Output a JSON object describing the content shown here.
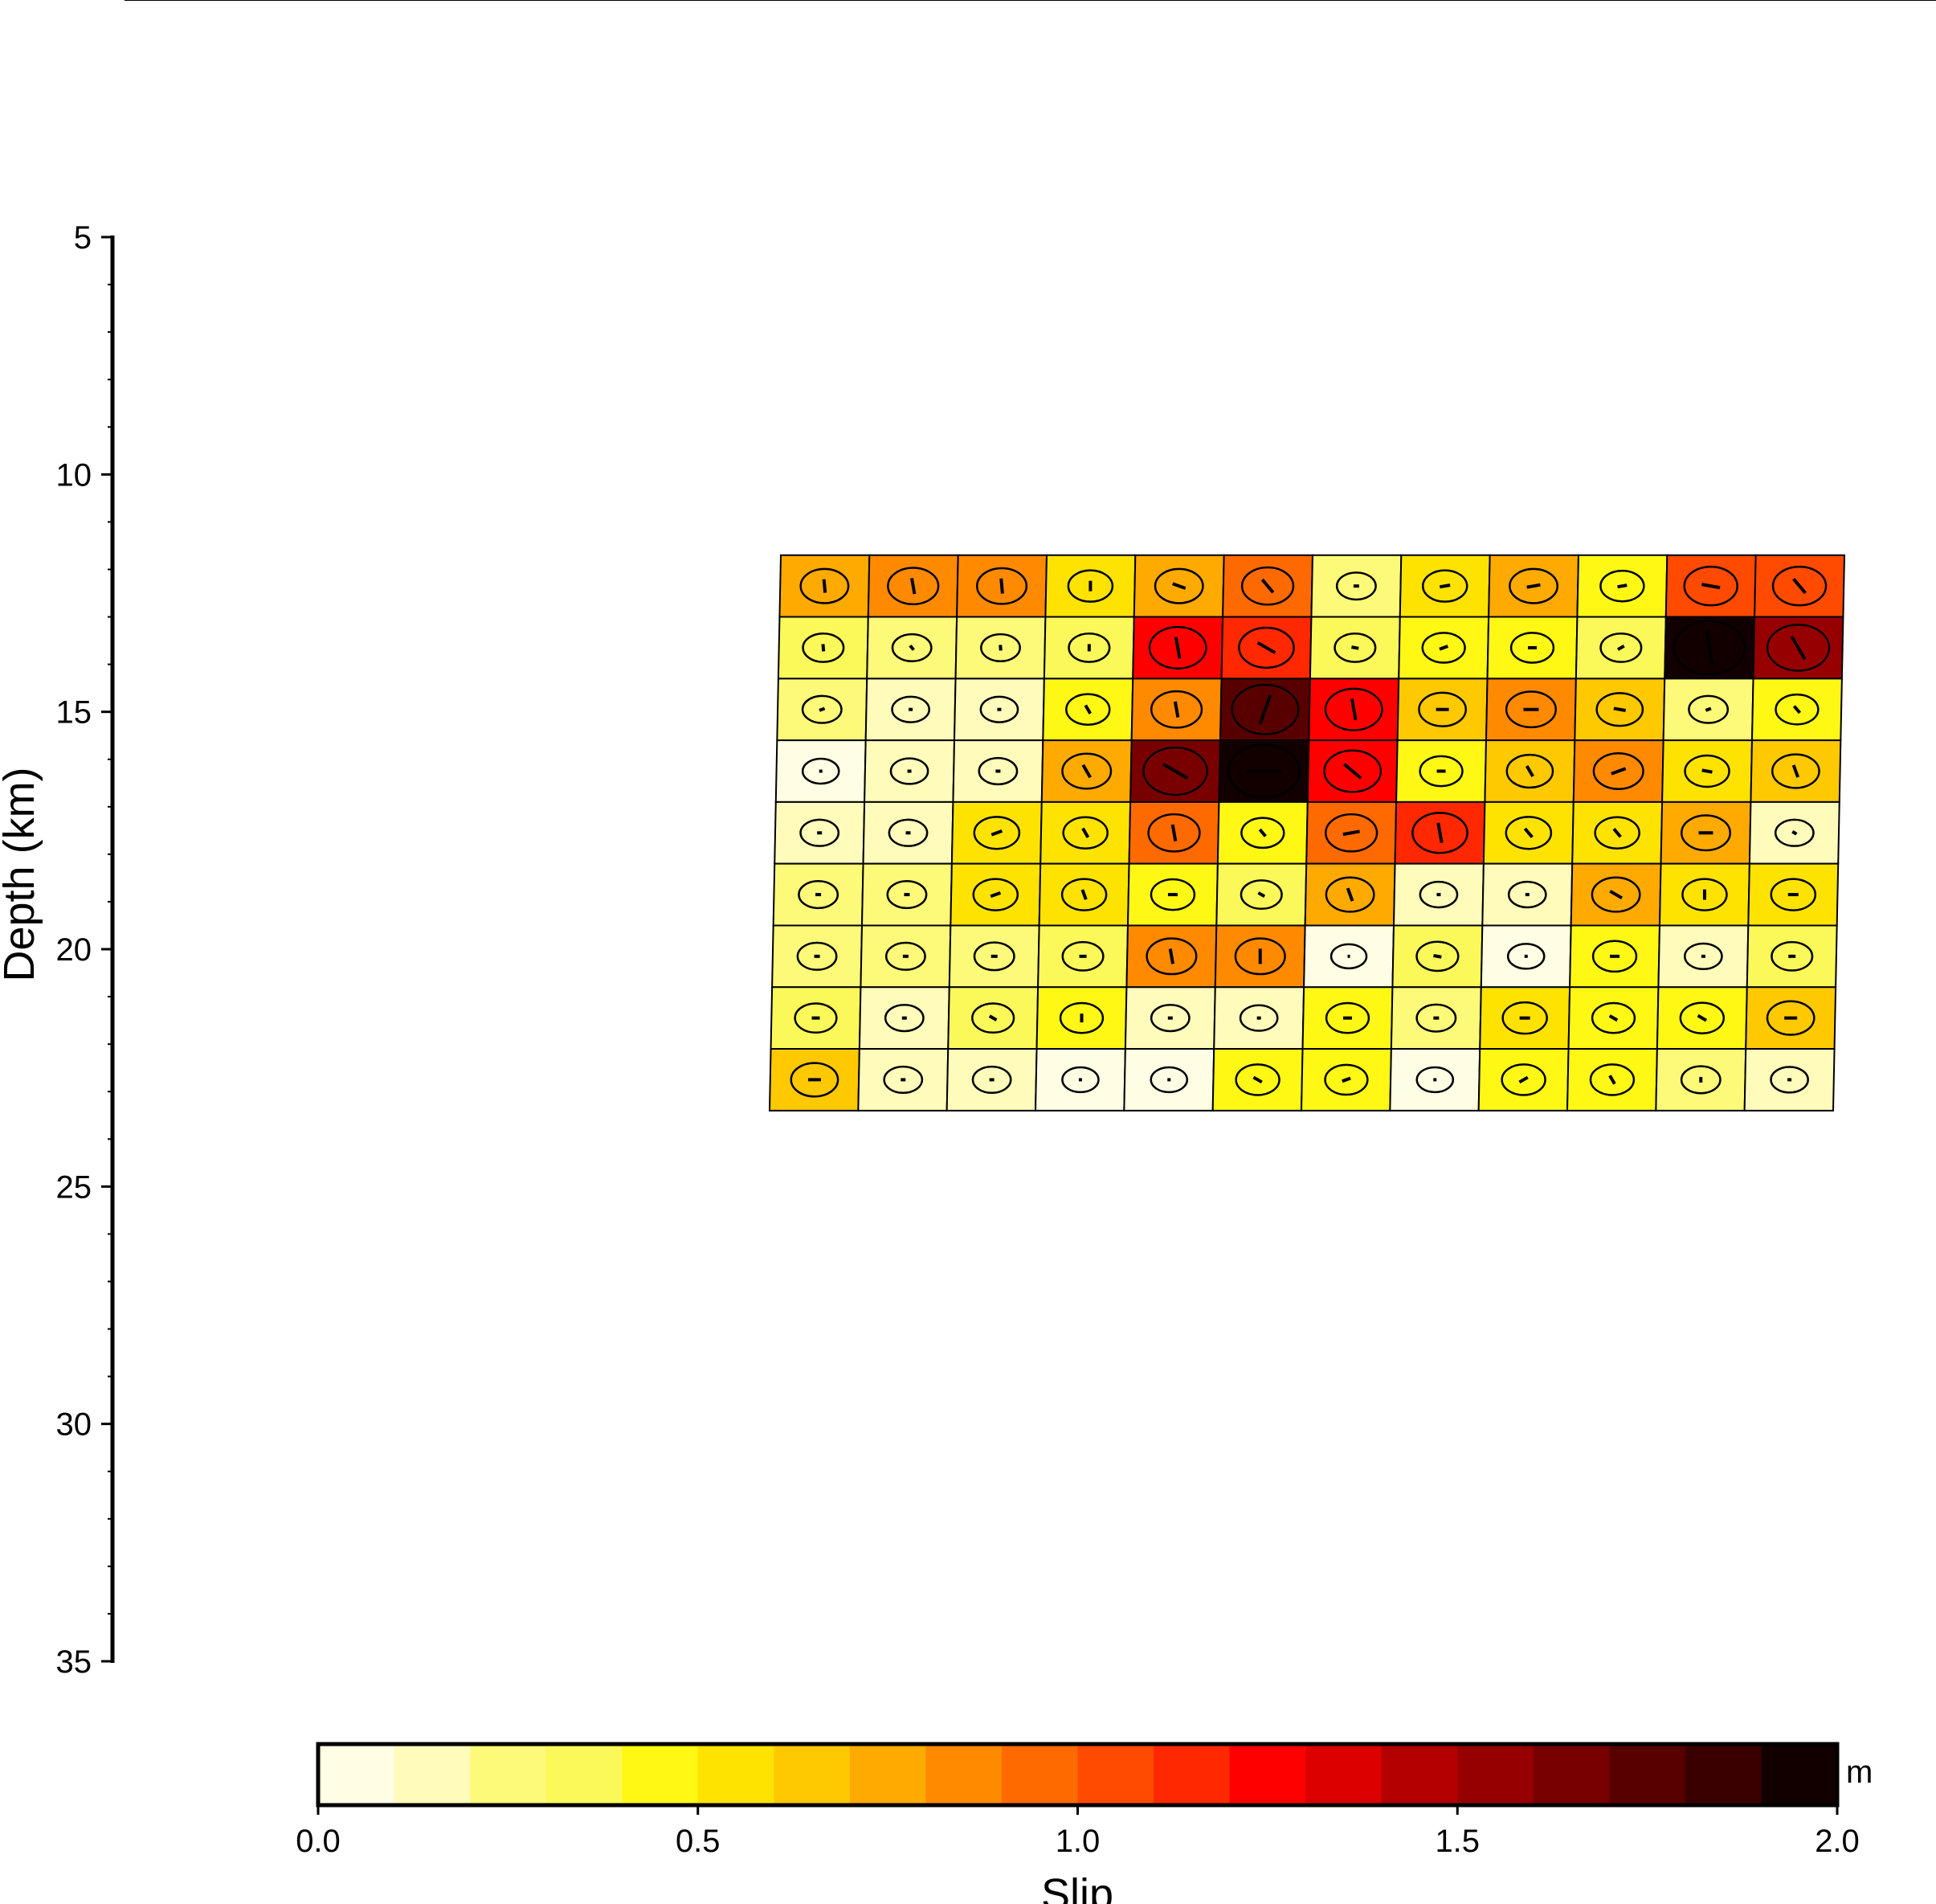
{
  "chart_data": {
    "type": "heatmap",
    "ylabel": "Depth (km)",
    "ylim": [
      5,
      35
    ],
    "y_ticks": [
      "5",
      "10",
      "15",
      "20",
      "25",
      "30",
      "35"
    ],
    "y_tick_values": [
      5,
      10,
      15,
      20,
      25,
      30,
      35
    ],
    "y_minor_step": 1,
    "grid": false,
    "fault": {
      "top_depth_km": 11.7,
      "bottom_depth_km": 23.4,
      "rows": 9,
      "cols": 12,
      "slip_m": [
        [
          0.7,
          0.85,
          0.8,
          0.5,
          0.7,
          0.9,
          0.2,
          0.5,
          0.7,
          0.45,
          1.0,
          1.0
        ],
        [
          0.3,
          0.2,
          0.2,
          0.3,
          1.2,
          1.1,
          0.3,
          0.4,
          0.4,
          0.3,
          2.0,
          1.5
        ],
        [
          0.2,
          0.1,
          0.1,
          0.45,
          0.85,
          1.75,
          1.2,
          0.65,
          0.8,
          0.6,
          0.2,
          0.4
        ],
        [
          0.05,
          0.1,
          0.15,
          0.75,
          1.6,
          2.0,
          1.2,
          0.4,
          0.6,
          0.8,
          0.5,
          0.65
        ],
        [
          0.15,
          0.15,
          0.55,
          0.5,
          0.9,
          0.4,
          0.9,
          1.1,
          0.55,
          0.5,
          0.75,
          0.15
        ],
        [
          0.2,
          0.2,
          0.5,
          0.5,
          0.45,
          0.3,
          0.7,
          0.1,
          0.1,
          0.7,
          0.5,
          0.5
        ],
        [
          0.2,
          0.2,
          0.25,
          0.3,
          0.8,
          0.8,
          0.0,
          0.35,
          0.05,
          0.45,
          0.1,
          0.3
        ],
        [
          0.35,
          0.15,
          0.35,
          0.4,
          0.15,
          0.1,
          0.4,
          0.2,
          0.5,
          0.4,
          0.45,
          0.65
        ],
        [
          0.65,
          0.15,
          0.15,
          0.05,
          0.05,
          0.45,
          0.4,
          0.05,
          0.45,
          0.45,
          0.2,
          0.1
        ]
      ],
      "rake_vectors_deg": [
        [
          -95,
          -100,
          -95,
          -90,
          -160,
          -130,
          0,
          -10,
          -10,
          -10,
          -170,
          -130
        ],
        [
          -95,
          -130,
          -95,
          -90,
          -100,
          -150,
          -170,
          160,
          0,
          150,
          -100,
          -120
        ],
        [
          160,
          0,
          0,
          -120,
          -100,
          -70,
          -100,
          0,
          0,
          10,
          160,
          -130
        ],
        [
          0,
          0,
          0,
          -120,
          30,
          0,
          -140,
          0,
          -120,
          -20,
          10,
          -110
        ],
        [
          0,
          0,
          160,
          -120,
          -100,
          -130,
          -10,
          -100,
          -130,
          -130,
          0,
          -150
        ],
        [
          0,
          0,
          160,
          -110,
          0,
          -150,
          -110,
          0,
          0,
          -150,
          -90,
          0
        ],
        [
          0,
          0,
          0,
          0,
          -100,
          -90,
          0,
          10,
          0,
          0,
          0,
          0
        ],
        [
          0,
          0,
          -150,
          -90,
          0,
          0,
          0,
          0,
          0,
          -150,
          -150,
          0
        ],
        [
          0,
          0,
          0,
          0,
          0,
          -150,
          160,
          0,
          150,
          -120,
          -90,
          0
        ]
      ]
    },
    "colorbar": {
      "label": "Slip",
      "unit": "m",
      "range": [
        0.0,
        2.0
      ],
      "ticks": [
        "0.0",
        "0.5",
        "1.0",
        "1.5",
        "2.0"
      ],
      "tick_values": [
        0,
        0.5,
        1.0,
        1.5,
        2.0
      ],
      "colors": [
        "#fffee5",
        "#fffbbb",
        "#fdfa7a",
        "#fbf95a",
        "#fff815",
        "#ffe300",
        "#ffc900",
        "#ffaa00",
        "#ff8a00",
        "#ff6a00",
        "#ff4a00",
        "#ff2800",
        "#ff0000",
        "#dd0000",
        "#b40000",
        "#960000",
        "#780000",
        "#580000",
        "#3a0000",
        "#120000"
      ]
    }
  }
}
